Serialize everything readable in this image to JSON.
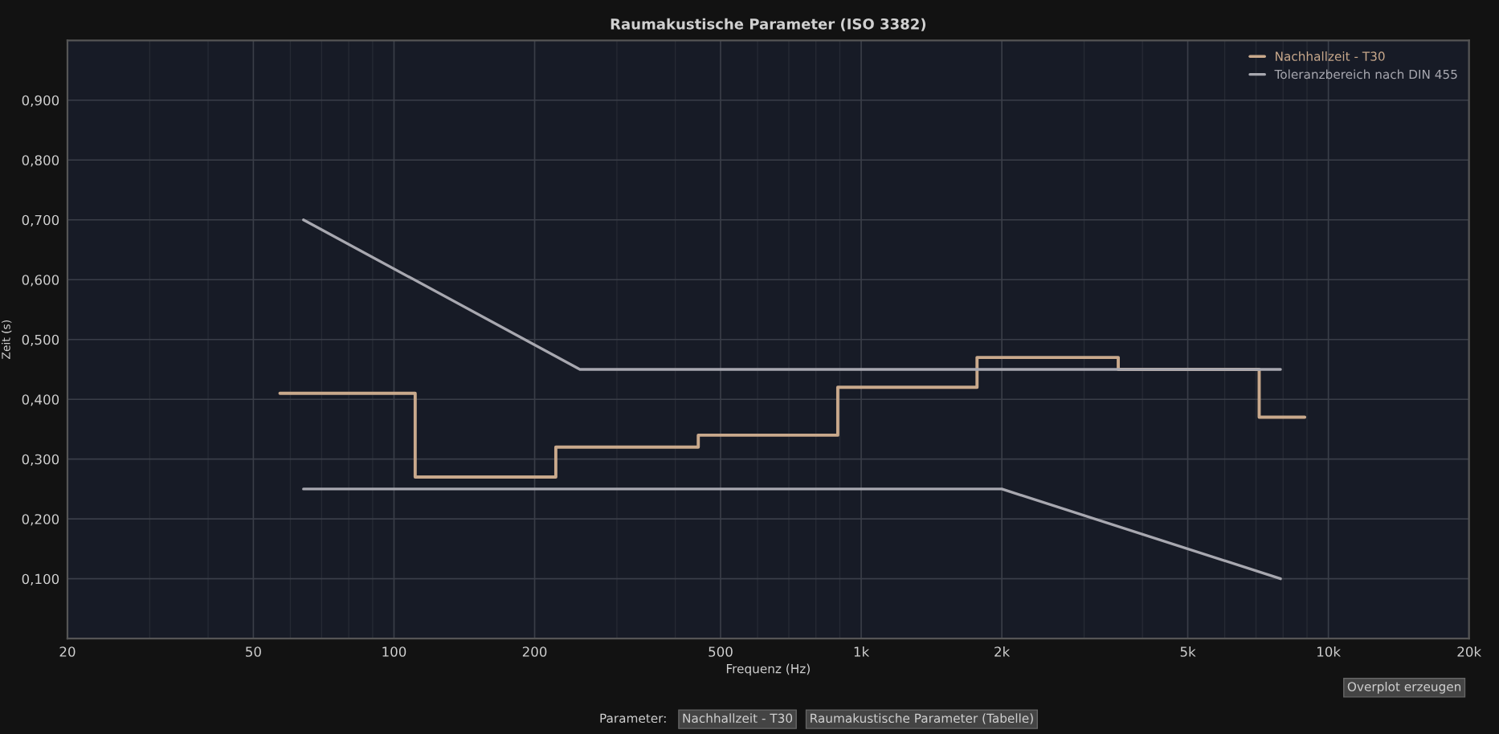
{
  "chart_data": {
    "type": "line",
    "title": "Raumakustische Parameter (ISO 3382)",
    "xlabel": "Frequenz (Hz)",
    "ylabel": "Zeit (s)",
    "log": "x",
    "grid": true,
    "legend": "top right",
    "xlim": [
      20,
      20000
    ],
    "xticks": [
      20,
      50,
      100,
      200,
      500,
      {
        "value": 1000,
        "label": "1k"
      },
      {
        "value": 2000,
        "label": "2k"
      },
      {
        "value": 5000,
        "label": "5k"
      },
      {
        "value": 10000,
        "label": "10k"
      },
      {
        "value": 20000,
        "label": "20k"
      }
    ],
    "ylim": [
      0,
      1.0
    ],
    "yticks": [
      {
        "value": 0.1,
        "label": "0,100"
      },
      {
        "value": 0.2,
        "label": "0,200"
      },
      {
        "value": 0.3,
        "label": "0,300"
      },
      {
        "value": 0.4,
        "label": "0,400"
      },
      {
        "value": 0.5,
        "label": "0,500"
      },
      {
        "value": 0.6,
        "label": "0,600"
      },
      {
        "value": 0.7,
        "label": "0,700"
      },
      {
        "value": 0.8,
        "label": "0,800"
      },
      {
        "value": 0.9,
        "label": "0,900"
      }
    ],
    "series": [
      {
        "name": "Nachhallzeit - T30",
        "type": "step",
        "color": "#c9a98c",
        "x": [
          57,
          111,
          222,
          448,
          891,
          1770,
          3550,
          7110,
          8900
        ],
        "values": [
          0.41,
          0.27,
          0.32,
          0.34,
          0.42,
          0.47,
          0.45,
          0.37,
          0.37
        ]
      },
      {
        "name": "Toleranzbereich nach DIN 455",
        "color": "#a8a8b0",
        "x": [
          64,
          250,
          7900
        ],
        "values": [
          0.7,
          0.45,
          0.45
        ]
      },
      {
        "color": "#a8a8b0",
        "x": [
          64,
          2000,
          7900
        ],
        "values": [
          0.25,
          0.25,
          0.1
        ]
      }
    ],
    "annotations": [
      "Parameter:",
      "Nachhallzeit - T30",
      "Raumakustische Parameter (Tabelle)",
      "Overplot erzeugen"
    ]
  }
}
